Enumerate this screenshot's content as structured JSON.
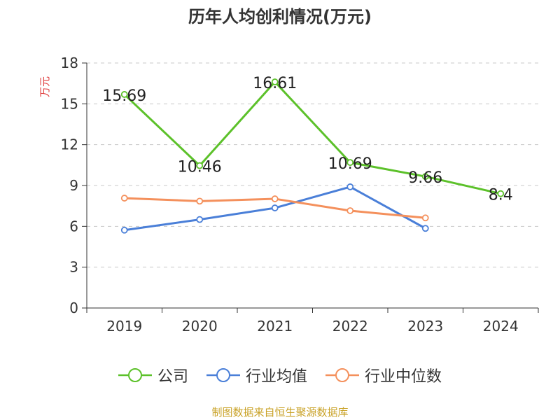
{
  "chart_data": {
    "type": "line",
    "title": "历年人均创利情况(万元)",
    "ylabel": "万元",
    "xlabel": "",
    "categories": [
      "2019",
      "2020",
      "2021",
      "2022",
      "2023",
      "2024"
    ],
    "ylim": [
      0,
      18
    ],
    "yticks": [
      0,
      3,
      6,
      9,
      12,
      15,
      18
    ],
    "grid": true,
    "legend_position": "bottom",
    "series": [
      {
        "name": "公司",
        "color": "#5cc12a",
        "values": [
          15.69,
          10.46,
          16.61,
          10.69,
          9.66,
          8.4
        ],
        "labels": [
          "15.69",
          "10.46",
          "16.61",
          "10.69",
          "9.66",
          "8.4"
        ],
        "show_labels": true
      },
      {
        "name": "行业均值",
        "color": "#4a7fd8",
        "values": [
          5.72,
          6.5,
          7.35,
          8.9,
          5.85,
          null
        ],
        "show_labels": false
      },
      {
        "name": "行业中位数",
        "color": "#f4905c",
        "values": [
          8.07,
          7.85,
          8.02,
          7.15,
          6.62,
          null
        ],
        "show_labels": false
      }
    ]
  },
  "source_note": "制图数据来自恒生聚源数据库"
}
